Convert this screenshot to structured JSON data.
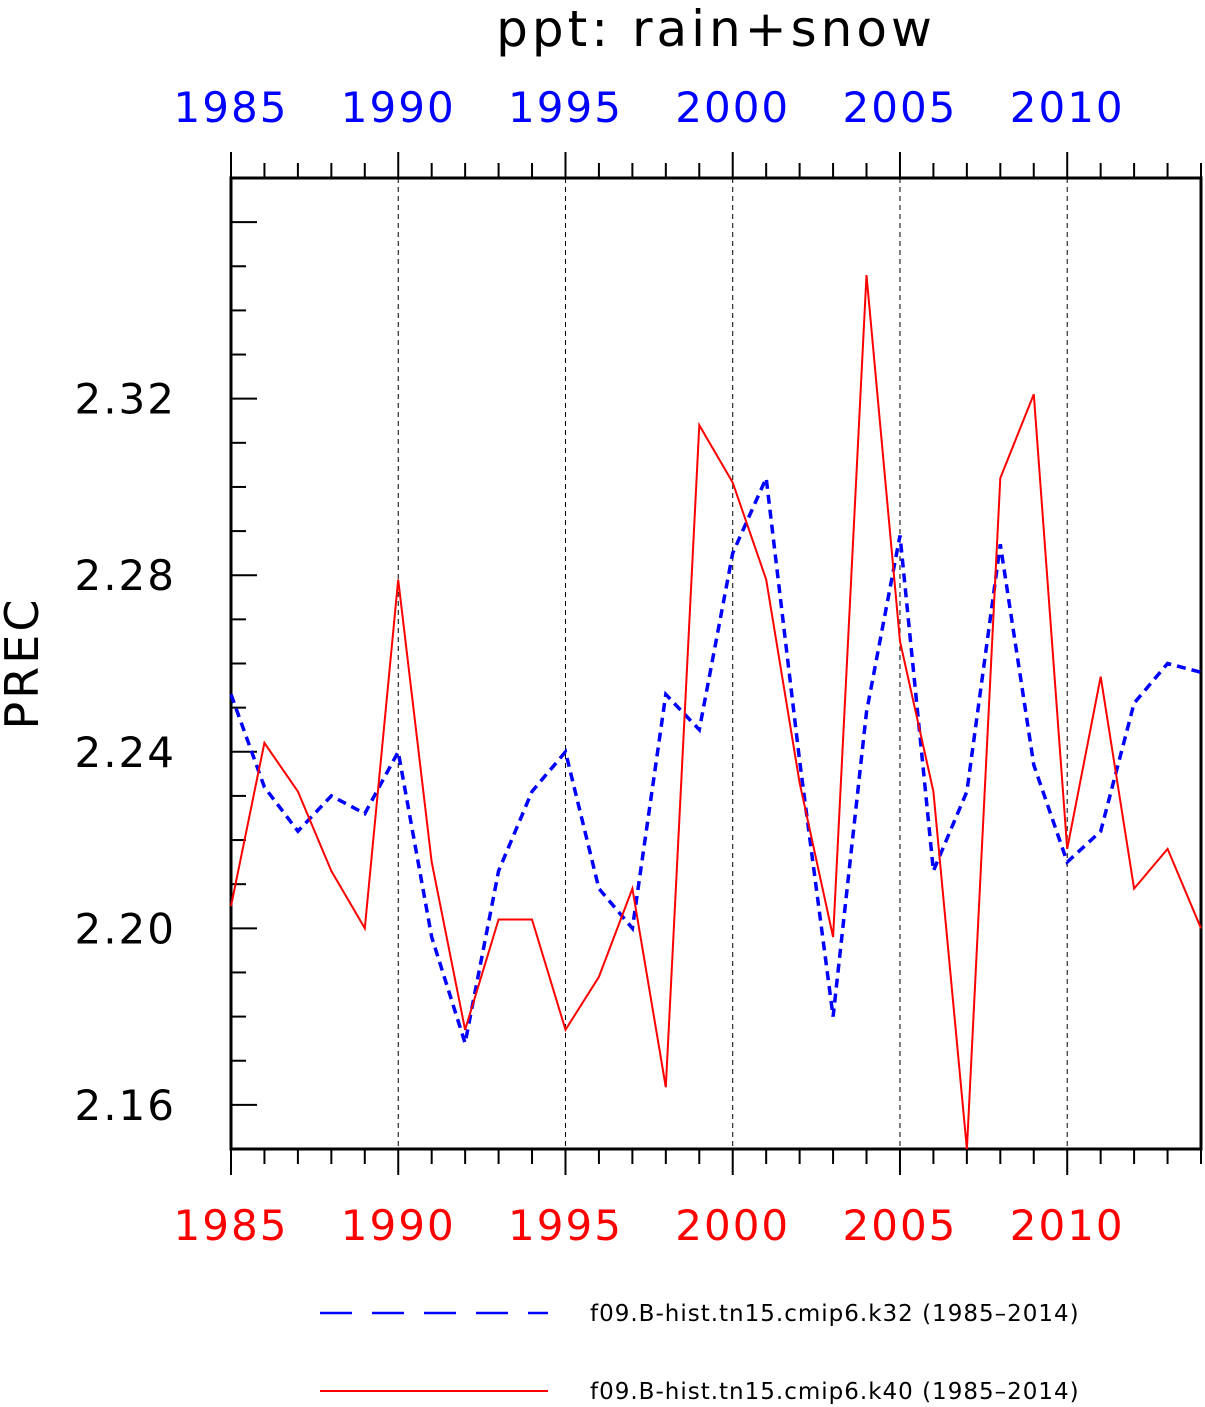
{
  "chart_data": {
    "type": "line",
    "title": "ppt: rain+snow",
    "xlabel": "",
    "ylabel": "PREC",
    "xlim": [
      1985,
      2014
    ],
    "ylim": [
      2.15,
      2.37
    ],
    "grid": "vertical dashed at major x ticks",
    "yticks": [
      "2.16",
      "2.20",
      "2.24",
      "2.28",
      "2.32"
    ],
    "x_top_tick_labels": [
      "1985",
      "1990",
      "1995",
      "2000",
      "2005",
      "2010"
    ],
    "x_bottom_tick_labels": [
      "1985",
      "1990",
      "1995",
      "2000",
      "2005",
      "2010"
    ],
    "colors": {
      "top_axis": "#0000ff",
      "bottom_axis": "#ff0000"
    },
    "x": [
      1985,
      1986,
      1987,
      1988,
      1989,
      1990,
      1991,
      1992,
      1993,
      1994,
      1995,
      1996,
      1997,
      1998,
      1999,
      2000,
      2001,
      2002,
      2003,
      2004,
      2005,
      2006,
      2007,
      2008,
      2009,
      2010,
      2011,
      2012,
      2013,
      2014
    ],
    "series": [
      {
        "name": "f09.B-hist.tn15.cmip6.k32 (1985–2014)",
        "color": "#0000ff",
        "style": "dashed",
        "values": [
          2.253,
          2.232,
          2.222,
          2.23,
          2.226,
          2.24,
          2.198,
          2.174,
          2.213,
          2.231,
          2.24,
          2.209,
          2.2,
          2.253,
          2.245,
          2.285,
          2.302,
          2.238,
          2.18,
          2.249,
          2.289,
          2.213,
          2.231,
          2.287,
          2.237,
          2.215,
          2.222,
          2.251,
          2.26,
          2.258
        ]
      },
      {
        "name": "f09.B-hist.tn15.cmip6.k40 (1985–2014)",
        "color": "#ff0000",
        "style": "solid",
        "values": [
          2.205,
          2.242,
          2.231,
          2.213,
          2.2,
          2.279,
          2.215,
          2.177,
          2.202,
          2.202,
          2.177,
          2.189,
          2.209,
          2.164,
          2.314,
          2.301,
          2.279,
          2.233,
          2.198,
          2.348,
          2.265,
          2.231,
          2.15,
          2.302,
          2.321,
          2.218,
          2.257,
          2.209,
          2.218,
          2.2
        ]
      }
    ],
    "legend": "bottom"
  }
}
